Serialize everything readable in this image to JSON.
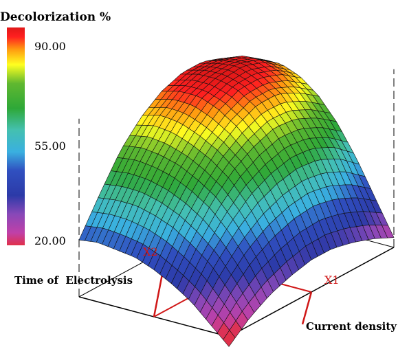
{
  "chart_data": {
    "type": "surface",
    "title": "Decolorization %",
    "xlabel": "Current density",
    "ylabel": "Time of  Electrolysis",
    "x_factor_label": "X1",
    "y_factor_label": "X2",
    "zlim": [
      20,
      90
    ],
    "grid": false,
    "legend_placement": "left",
    "colorbar": {
      "tick_labels": [
        "90.00",
        "55.00",
        "20.00"
      ],
      "tick_values": [
        90,
        55,
        20
      ],
      "stops": [
        {
          "value": 20,
          "color": "#e0304a"
        },
        {
          "value": 24,
          "color": "#c040a8"
        },
        {
          "value": 30,
          "color": "#8848b8"
        },
        {
          "value": 36,
          "color": "#2c3aa8"
        },
        {
          "value": 44,
          "color": "#3050c0"
        },
        {
          "value": 50,
          "color": "#3ab0e0"
        },
        {
          "value": 57,
          "color": "#44c0b0"
        },
        {
          "value": 64,
          "color": "#2ea838"
        },
        {
          "value": 72,
          "color": "#60b830"
        },
        {
          "value": 78,
          "color": "#ffff20"
        },
        {
          "value": 83,
          "color": "#ff9a10"
        },
        {
          "value": 87,
          "color": "#ff2020"
        },
        {
          "value": 90,
          "color": "#e01818"
        }
      ]
    },
    "x": [
      -1,
      -0.75,
      -0.5,
      -0.25,
      0,
      0.25,
      0.5,
      0.75,
      1
    ],
    "y": [
      -1,
      -0.75,
      -0.5,
      -0.25,
      0,
      0.25,
      0.5,
      0.75,
      1
    ],
    "z": [
      [
        16,
        23,
        28,
        31,
        33,
        33,
        31,
        28,
        24
      ],
      [
        23,
        33,
        41,
        46,
        49,
        50,
        48,
        44,
        38
      ],
      [
        30,
        42,
        51,
        58,
        62,
        64,
        63,
        59,
        52
      ],
      [
        35,
        48,
        59,
        67,
        72,
        75,
        74,
        70,
        64
      ],
      [
        39,
        53,
        64,
        73,
        79,
        83,
        83,
        79,
        73
      ],
      [
        42,
        56,
        68,
        77,
        84,
        88,
        88,
        85,
        79
      ],
      [
        43,
        58,
        70,
        80,
        87,
        90,
        91,
        88,
        82
      ],
      [
        44,
        58,
        71,
        81,
        87,
        90,
        90,
        88,
        82
      ],
      [
        43,
        57,
        70,
        79,
        85,
        88,
        88,
        85,
        79
      ]
    ]
  }
}
